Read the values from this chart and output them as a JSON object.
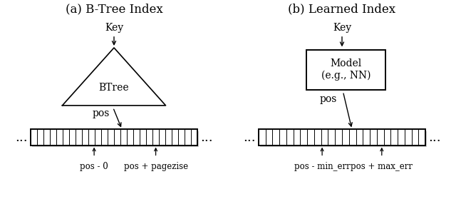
{
  "title_a": "(a) B-Tree Index",
  "title_b": "(b) Learned Index",
  "btree_label": "BTree",
  "model_label": "Model\n(e.g., NN)",
  "key_label": "Key",
  "pos_label_a": "pos",
  "pos_label_b": "pos",
  "label_left_a": "pos - 0",
  "label_right_a": "pos + pagezise",
  "label_left_b": "pos - min_err",
  "label_right_b": "pos + max_err",
  "dots": "...",
  "bg_color": "#ffffff",
  "fg_color": "#000000",
  "title_fontsize": 12,
  "label_fontsize": 10,
  "small_fontsize": 8.5,
  "n_cells_a": 26,
  "n_cells_b": 24
}
